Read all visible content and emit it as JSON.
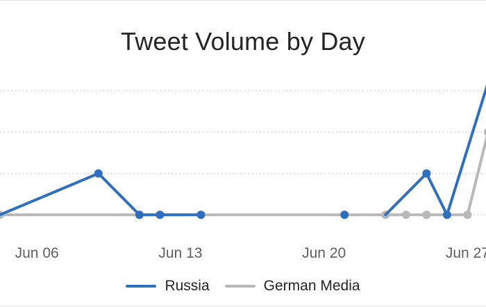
{
  "chart_data": {
    "type": "line",
    "title": "Tweet Volume by Day",
    "xlabel": "",
    "ylabel": "",
    "x_ticks": [
      "Jun 06",
      "Jun 13",
      "Jun 20",
      "Jun 27"
    ],
    "x_tick_days": [
      6,
      13,
      20,
      27
    ],
    "xlim": [
      4.2,
      27.9
    ],
    "ylim": [
      -0.5,
      3.5
    ],
    "y_grid": [
      0,
      1,
      2,
      3
    ],
    "grid": "horizontal-dotted",
    "legend_position": "bottom",
    "series": [
      {
        "name": "Russia",
        "color": "#2f6fbd",
        "segments": [
          [
            [
              4.2,
              0
            ],
            [
              9,
              1
            ],
            [
              11,
              0
            ],
            [
              12,
              0
            ],
            [
              14,
              0
            ]
          ],
          [
            [
              21,
              0
            ]
          ],
          [
            [
              23,
              0
            ],
            [
              25,
              1
            ],
            [
              26,
              0
            ],
            [
              28,
              3.2
            ]
          ]
        ],
        "markers_x": [
          9,
          11,
          12,
          14,
          21,
          25,
          26
        ]
      },
      {
        "name": "German Media",
        "color": "#b8b8b8",
        "segments": [
          [
            [
              4.2,
              0
            ],
            [
              23,
              0
            ],
            [
              24,
              0
            ],
            [
              25,
              0
            ],
            [
              26,
              0
            ],
            [
              27,
              0
            ],
            [
              28,
              2
            ],
            [
              28.5,
              1.3
            ]
          ]
        ],
        "markers_x": [
          4.2,
          23,
          24,
          25,
          26,
          27,
          28
        ]
      }
    ]
  }
}
